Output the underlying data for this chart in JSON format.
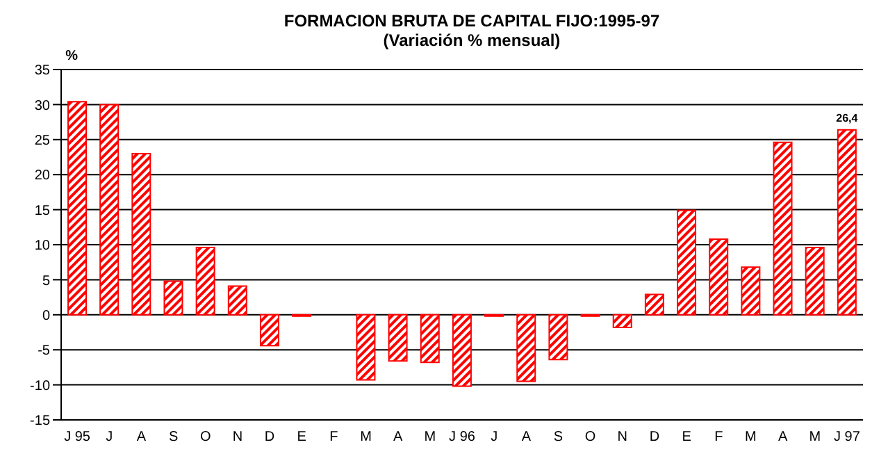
{
  "chart_data": {
    "type": "bar",
    "title": "FORMACION BRUTA DE CAPITAL FIJO:1995-97",
    "subtitle": "(Variación % mensual)",
    "ylabel": "%",
    "categories": [
      "J 95",
      "J",
      "A",
      "S",
      "O",
      "N",
      "D",
      "E",
      "F",
      "M",
      "A",
      "M",
      "J 96",
      "J",
      "A",
      "S",
      "O",
      "N",
      "D",
      "E",
      "F",
      "M",
      "A",
      "M",
      "J 97"
    ],
    "values": [
      30.4,
      30,
      23,
      4.8,
      9.6,
      4.1,
      -4.4,
      -0.2,
      0,
      -9.3,
      -6.6,
      -6.8,
      -10.2,
      -0.2,
      -9.5,
      -6.4,
      -0.2,
      -1.8,
      2.9,
      14.9,
      10.8,
      6.8,
      24.6,
      9.6,
      26.4
    ],
    "value_labels": [
      null,
      null,
      null,
      null,
      null,
      null,
      null,
      null,
      null,
      null,
      null,
      null,
      null,
      null,
      null,
      null,
      null,
      null,
      null,
      null,
      null,
      null,
      null,
      null,
      "26,4"
    ],
    "color": "#ff0000",
    "ylim": [
      -15,
      35
    ],
    "yticks": [
      -15,
      -10,
      -5,
      0,
      5,
      10,
      15,
      20,
      25,
      30,
      35
    ],
    "grid": "y",
    "legend": false
  }
}
